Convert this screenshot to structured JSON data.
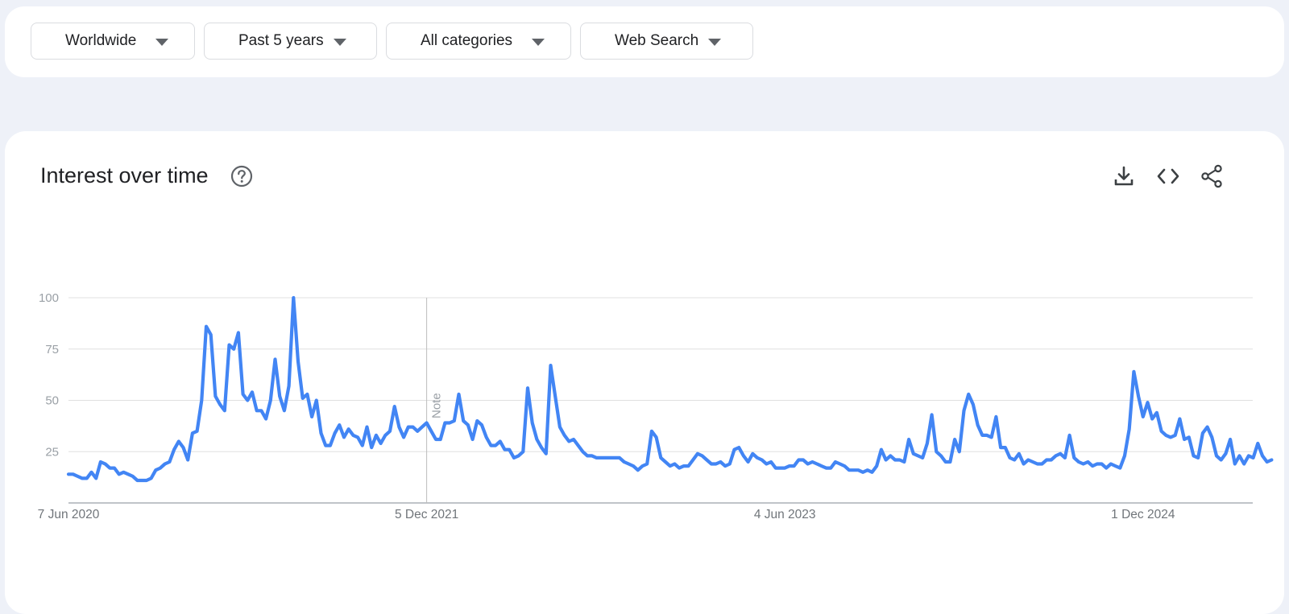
{
  "filters": {
    "region": "Worldwide",
    "time_range": "Past 5 years",
    "category": "All categories",
    "search_type": "Web Search"
  },
  "card": {
    "title": "Interest over time",
    "icons": [
      "help-icon",
      "download-icon",
      "embed-code-icon",
      "share-icon"
    ]
  },
  "colors": {
    "line": "#4285f4",
    "grid": "#e0e0e0",
    "page_background": "#eef1f8"
  },
  "chart_data": {
    "type": "line",
    "title": "",
    "xlabel": "",
    "ylabel": "",
    "ylim": [
      0,
      100
    ],
    "yticks": [
      25,
      50,
      75,
      100
    ],
    "x_tick_labels": [
      "7 Jun 2020",
      "5 Dec 2021",
      "4 Jun 2023",
      "1 Dec 2024"
    ],
    "x_tick_weeks": [
      0,
      78,
      156,
      234
    ],
    "x_start": "7 Jun 2020",
    "x_step": "1 week",
    "grid": true,
    "legend": "none",
    "annotation": {
      "label": "Note",
      "week": 78
    },
    "series": [
      {
        "name": "",
        "values": [
          14,
          14,
          13,
          12,
          12,
          15,
          12,
          20,
          19,
          17,
          17,
          14,
          15,
          14,
          13,
          11,
          11,
          11,
          12,
          16,
          17,
          19,
          20,
          26,
          30,
          27,
          21,
          34,
          35,
          50,
          86,
          82,
          52,
          48,
          45,
          77,
          75,
          83,
          53,
          50,
          54,
          45,
          45,
          41,
          50,
          70,
          52,
          45,
          57,
          100,
          69,
          51,
          53,
          42,
          50,
          34,
          28,
          28,
          34,
          38,
          32,
          36,
          33,
          32,
          28,
          37,
          27,
          33,
          29,
          33,
          35,
          47,
          37,
          32,
          37,
          37,
          35,
          37,
          39,
          35,
          31,
          31,
          39,
          39,
          40,
          53,
          40,
          38,
          31,
          40,
          38,
          32,
          28,
          28,
          30,
          26,
          26,
          22,
          23,
          25,
          56,
          39,
          31,
          27,
          24,
          67,
          52,
          37,
          33,
          30,
          31,
          28,
          25,
          23,
          23,
          22,
          22,
          22,
          22,
          22,
          22,
          20,
          19,
          18,
          16,
          18,
          19,
          35,
          32,
          22,
          20,
          18,
          19,
          17,
          18,
          18,
          21,
          24,
          23,
          21,
          19,
          19,
          20,
          18,
          19,
          26,
          27,
          23,
          20,
          24,
          22,
          21,
          19,
          20,
          17,
          17,
          17,
          18,
          18,
          21,
          21,
          19,
          20,
          19,
          18,
          17,
          17,
          20,
          19,
          18,
          16,
          16,
          16,
          15,
          16,
          15,
          18,
          26,
          21,
          23,
          21,
          21,
          20,
          31,
          24,
          23,
          22,
          29,
          43,
          25,
          23,
          20,
          20,
          31,
          25,
          45,
          53,
          48,
          38,
          33,
          33,
          32,
          42,
          27,
          27,
          22,
          21,
          24,
          19,
          21,
          20,
          19,
          19,
          21,
          21,
          23,
          24,
          22,
          33,
          22,
          20,
          19,
          20,
          18,
          19,
          19,
          17,
          19,
          18,
          17,
          23,
          36,
          64,
          52,
          42,
          49,
          41,
          44,
          35,
          33,
          32,
          33,
          41,
          31,
          32,
          23,
          22,
          34,
          37,
          32,
          23,
          21,
          24,
          31,
          19,
          23,
          19,
          23,
          22,
          29,
          23,
          20,
          21
        ]
      }
    ]
  }
}
